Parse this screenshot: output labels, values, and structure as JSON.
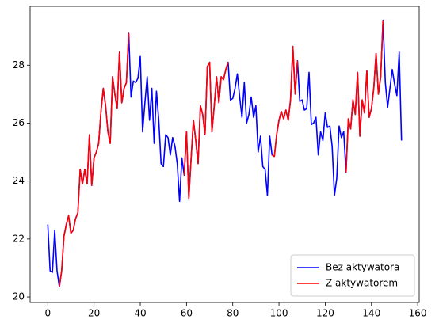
{
  "chart_data": {
    "type": "line",
    "x": [
      0,
      1,
      2,
      3,
      4,
      5,
      6,
      7,
      8,
      9,
      10,
      11,
      12,
      13,
      14,
      15,
      16,
      17,
      18,
      19,
      20,
      21,
      22,
      23,
      24,
      25,
      26,
      27,
      28,
      29,
      30,
      31,
      32,
      33,
      34,
      35,
      36,
      37,
      38,
      39,
      40,
      41,
      42,
      43,
      44,
      45,
      46,
      47,
      48,
      49,
      50,
      51,
      52,
      53,
      54,
      55,
      56,
      57,
      58,
      59,
      60,
      61,
      62,
      63,
      64,
      65,
      66,
      67,
      68,
      69,
      70,
      71,
      72,
      73,
      74,
      75,
      76,
      77,
      78,
      79,
      80,
      81,
      82,
      83,
      84,
      85,
      86,
      87,
      88,
      89,
      90,
      91,
      92,
      93,
      94,
      95,
      96,
      97,
      98,
      99,
      100,
      101,
      102,
      103,
      104,
      105,
      106,
      107,
      108,
      109,
      110,
      111,
      112,
      113,
      114,
      115,
      116,
      117,
      118,
      119,
      120,
      121,
      122,
      123,
      124,
      125,
      126,
      127,
      128,
      129,
      130,
      131,
      132,
      133,
      134,
      135,
      136,
      137,
      138,
      139,
      140,
      141,
      142,
      143,
      144,
      145,
      146,
      147,
      148,
      149,
      150,
      151,
      152,
      153
    ],
    "series": [
      {
        "name": "Bez aktywatora",
        "color": "#0000ff",
        "values": [
          22.5,
          20.9,
          20.85,
          22.3,
          20.9,
          20.35,
          20.9,
          22.1,
          22.5,
          22.8,
          22.2,
          22.3,
          22.7,
          22.9,
          24.4,
          23.9,
          24.4,
          23.9,
          25.6,
          23.85,
          24.8,
          25.0,
          25.3,
          26.4,
          27.2,
          26.6,
          25.7,
          25.3,
          27.6,
          27.0,
          26.5,
          28.45,
          26.7,
          27.2,
          27.4,
          29.1,
          26.9,
          27.45,
          27.4,
          27.55,
          28.3,
          25.7,
          26.7,
          27.6,
          26.1,
          27.2,
          25.3,
          27.1,
          26.1,
          24.6,
          24.5,
          25.6,
          25.5,
          24.9,
          25.5,
          25.2,
          24.6,
          23.3,
          24.8,
          24.2,
          25.7,
          23.4,
          24.8,
          26.1,
          25.4,
          24.6,
          26.6,
          26.3,
          25.6,
          27.95,
          28.1,
          25.7,
          26.6,
          27.6,
          26.7,
          27.6,
          27.5,
          27.85,
          28.1,
          26.8,
          26.85,
          27.2,
          27.7,
          26.9,
          26.2,
          27.4,
          26.0,
          26.3,
          26.9,
          26.2,
          26.6,
          25.0,
          25.55,
          24.5,
          24.4,
          23.5,
          25.55,
          24.9,
          24.85,
          25.6,
          26.1,
          26.4,
          26.15,
          26.45,
          26.1,
          26.8,
          28.65,
          27.0,
          28.15,
          26.75,
          26.8,
          26.45,
          26.5,
          27.75,
          25.95,
          26.0,
          26.2,
          24.9,
          25.7,
          25.4,
          26.35,
          25.85,
          25.9,
          25.2,
          23.5,
          24.1,
          25.9,
          25.5,
          25.7,
          24.3,
          26.15,
          25.8,
          26.8,
          26.3,
          27.75,
          25.55,
          26.8,
          26.35,
          27.8,
          26.2,
          26.5,
          27.2,
          28.4,
          27.0,
          27.6,
          29.55,
          27.4,
          26.55,
          27.2,
          27.85,
          27.35,
          26.95,
          28.45,
          25.4
        ]
      },
      {
        "name": "Z aktywatorem",
        "color": "#ff0000",
        "values": [
          null,
          null,
          null,
          null,
          null,
          20.35,
          20.9,
          22.1,
          22.5,
          22.8,
          22.2,
          22.3,
          22.7,
          22.9,
          24.4,
          23.9,
          24.4,
          23.9,
          25.6,
          23.85,
          24.8,
          25.0,
          25.3,
          26.4,
          27.2,
          26.6,
          25.7,
          25.3,
          27.6,
          27.0,
          26.5,
          28.45,
          26.7,
          27.2,
          27.4,
          29.1,
          null,
          null,
          null,
          null,
          null,
          null,
          null,
          null,
          null,
          null,
          null,
          null,
          null,
          null,
          null,
          null,
          null,
          null,
          null,
          null,
          null,
          null,
          null,
          24.2,
          25.7,
          23.4,
          24.8,
          26.1,
          25.4,
          24.6,
          26.6,
          26.3,
          25.6,
          27.95,
          28.1,
          25.7,
          26.6,
          27.6,
          26.7,
          27.6,
          27.5,
          27.85,
          28.1,
          null,
          null,
          null,
          null,
          null,
          null,
          null,
          null,
          null,
          null,
          null,
          null,
          null,
          null,
          null,
          null,
          null,
          null,
          24.9,
          24.85,
          25.6,
          26.1,
          26.4,
          26.15,
          26.45,
          26.1,
          26.8,
          28.65,
          27.0,
          28.15,
          null,
          null,
          null,
          null,
          null,
          null,
          null,
          null,
          null,
          null,
          null,
          null,
          null,
          null,
          null,
          null,
          null,
          null,
          null,
          null,
          24.3,
          26.15,
          25.8,
          26.8,
          26.3,
          27.75,
          25.55,
          26.8,
          26.35,
          27.8,
          26.2,
          26.5,
          27.2,
          28.4,
          27.0,
          27.6,
          29.55,
          null,
          null,
          null,
          null,
          null,
          null,
          null,
          null
        ]
      }
    ],
    "xlim": [
      -7.65,
      160.65
    ],
    "xticks": [
      0,
      20,
      40,
      60,
      80,
      100,
      120,
      140,
      160
    ],
    "ylim": [
      19.81,
      30.03
    ],
    "yticks": [
      20,
      22,
      24,
      26,
      28
    ],
    "legend": "lower right"
  }
}
